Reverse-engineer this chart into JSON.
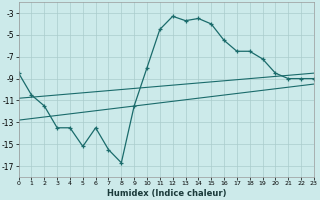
{
  "xlabel": "Humidex (Indice chaleur)",
  "x_values": [
    0,
    1,
    2,
    3,
    4,
    5,
    6,
    7,
    8,
    9,
    10,
    11,
    12,
    13,
    14,
    15,
    16,
    17,
    18,
    19,
    20,
    21,
    22,
    23
  ],
  "main_line": [
    -8.5,
    -10.5,
    -11.5,
    -13.5,
    -13.5,
    -15.2,
    -13.5,
    -15.5,
    -16.7,
    -11.5,
    -8.0,
    -4.5,
    -3.3,
    -3.7,
    -3.5,
    -4.0,
    -5.5,
    -6.5,
    -6.5,
    -7.2,
    -8.5,
    -9.0,
    -9.0,
    -9.0
  ],
  "reg_line1_x": [
    0,
    23
  ],
  "reg_line1_y": [
    -10.8,
    -8.5
  ],
  "reg_line2_x": [
    0,
    23
  ],
  "reg_line2_y": [
    -12.8,
    -9.5
  ],
  "bg_color": "#cceaea",
  "grid_color": "#aacccc",
  "line_color": "#1a6b6b",
  "ylim": [
    -18,
    -2
  ],
  "xlim": [
    0,
    23
  ],
  "yticks": [
    -17,
    -15,
    -13,
    -11,
    -9,
    -7,
    -5,
    -3
  ],
  "xticks": [
    0,
    1,
    2,
    3,
    4,
    5,
    6,
    7,
    8,
    9,
    10,
    11,
    12,
    13,
    14,
    15,
    16,
    17,
    18,
    19,
    20,
    21,
    22,
    23
  ]
}
